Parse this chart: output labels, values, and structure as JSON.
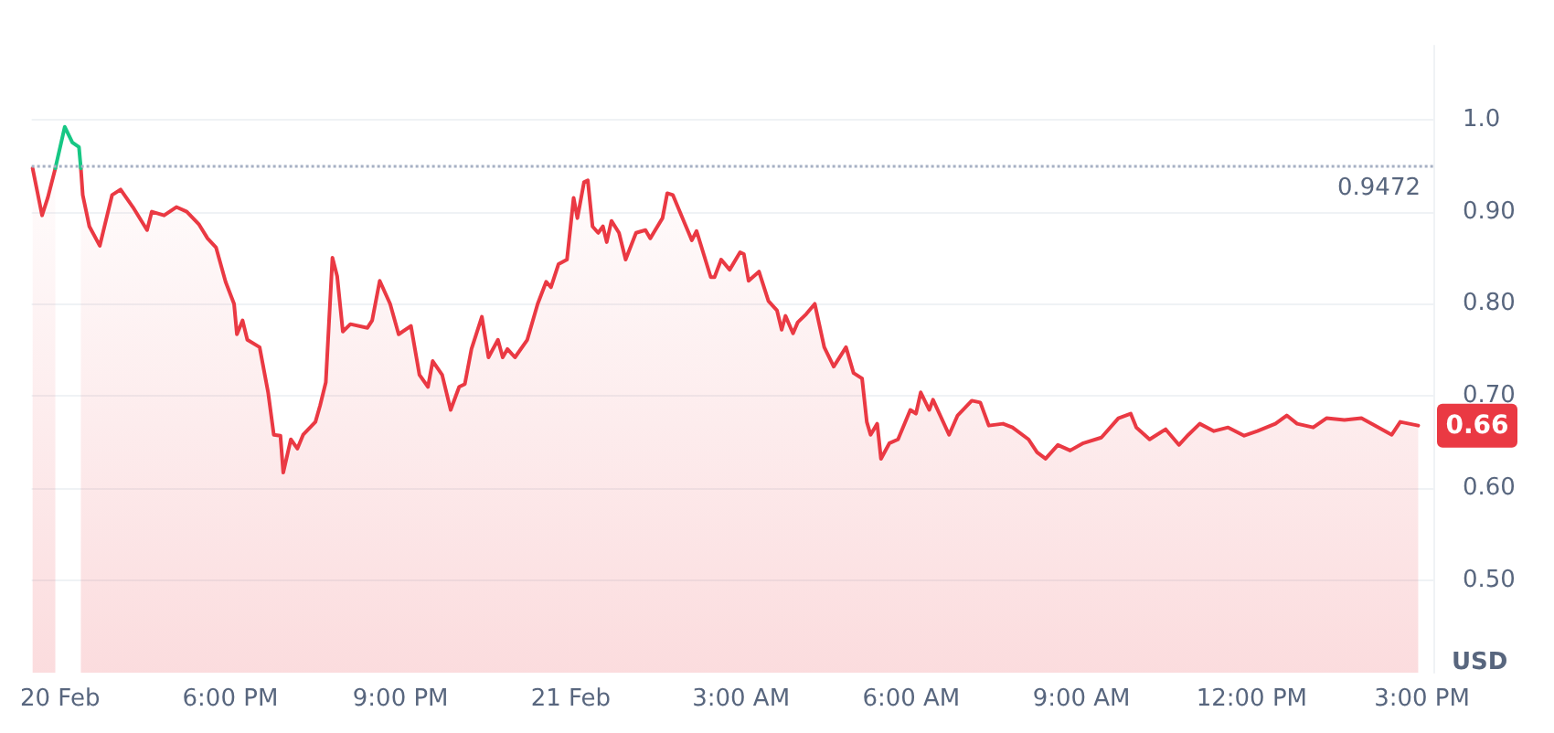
{
  "chart_data": {
    "type": "area",
    "series": [
      {
        "color": "#ea3943",
        "x": [
          "--02-20T14:31",
          "--02-20T14:41",
          "--02-20T14:47",
          "--02-20T14:55",
          "--02-20T15:05",
          "--02-20T15:22",
          "--02-20T15:24",
          "--02-20T15:31",
          "--02-20T15:42",
          "--02-20T15:55",
          "--02-20T16:04",
          "--02-20T16:17",
          "--02-20T16:32",
          "--02-20T16:37",
          "--02-20T16:50",
          "--02-20T17:03",
          "--02-20T17:14",
          "--02-20T17:27",
          "--02-20T17:36",
          "--02-20T17:45",
          "--02-20T17:55",
          "--02-20T18:04",
          "--02-20T18:07",
          "--02-20T18:13",
          "--02-20T18:18",
          "--02-20T18:31",
          "--02-20T18:40",
          "--02-20T18:46",
          "--02-20T18:53",
          "--02-20T18:56",
          "--02-20T19:04",
          "--02-20T19:11",
          "--02-20T19:17",
          "--02-20T19:30",
          "--02-20T19:35",
          "--02-20T19:41",
          "--02-20T19:48",
          "--02-20T19:53",
          "--02-20T19:59",
          "--02-20T20:07",
          "--02-20T20:25",
          "--02-20T20:30",
          "--02-20T20:38",
          "--02-20T20:49",
          "--02-20T20:58",
          "--02-20T21:11",
          "--02-20T21:20",
          "--02-20T21:29",
          "--02-20T21:34",
          "--02-20T21:44",
          "--02-20T21:53",
          "--02-20T22:02",
          "--02-20T22:08",
          "--02-20T22:15",
          "--02-20T22:26",
          "--02-20T22:33",
          "--02-20T22:43",
          "--02-20T22:48",
          "--02-20T22:53",
          "--02-20T23:01",
          "--02-20T23:14",
          "--02-20T23:25",
          "--02-20T23:34",
          "--02-20T23:39",
          "--02-20T23:47",
          "--02-20T23:56",
          "--02-21T00:03",
          "--02-21T00:07",
          "--02-21T00:14",
          "--02-21T00:18",
          "--02-21T00:23",
          "--02-21T00:29",
          "--02-21T00:34",
          "--02-21T00:38",
          "--02-21T00:43",
          "--02-21T00:51",
          "--02-21T00:58",
          "--02-21T01:09",
          "--02-21T01:19",
          "--02-21T01:24",
          "--02-21T01:37",
          "--02-21T01:42",
          "--02-21T01:48",
          "--02-21T02:01",
          "--02-21T02:08",
          "--02-21T02:13",
          "--02-21T02:28",
          "--02-21T02:32",
          "--02-21T02:39",
          "--02-21T02:48",
          "--02-21T02:59",
          "--02-21T03:03",
          "--02-21T03:08",
          "--02-21T03:19",
          "--02-21T03:29",
          "--02-21T03:38",
          "--02-21T03:43",
          "--02-21T03:47",
          "--02-21T03:55",
          "--02-21T04:00",
          "--02-21T04:09",
          "--02-21T04:18",
          "--02-21T04:28",
          "--02-21T04:38",
          "--02-21T04:51",
          "--02-21T04:59",
          "--02-21T05:08",
          "--02-21T05:13",
          "--02-21T05:17",
          "--02-21T05:24",
          "--02-21T05:28",
          "--02-21T05:37",
          "--02-21T05:46",
          "--02-21T05:59",
          "--02-21T06:05",
          "--02-21T06:10",
          "--02-21T06:19",
          "--02-21T06:23",
          "--02-21T06:40",
          "--02-21T06:49",
          "--02-21T07:04",
          "--02-21T07:13",
          "--02-21T07:22",
          "--02-21T07:37",
          "--02-21T07:47",
          "--02-21T08:04",
          "--02-21T08:13",
          "--02-21T08:22",
          "--02-21T08:35",
          "--02-21T08:48",
          "--02-21T09:02",
          "--02-21T09:21",
          "--02-21T09:39",
          "--02-21T09:52",
          "--02-21T09:58",
          "--02-21T10:12",
          "--02-21T10:29",
          "--02-21T10:43",
          "--02-21T10:53",
          "--02-21T11:05",
          "--02-21T11:20",
          "--02-21T11:35",
          "--02-21T11:52",
          "--02-21T12:06",
          "--02-21T12:25",
          "--02-21T12:37",
          "--02-21T12:48",
          "--02-21T13:05",
          "--02-21T13:19",
          "--02-21T13:38",
          "--02-21T13:56",
          "--02-21T14:14",
          "--02-21T14:28",
          "--02-21T14:37",
          "--02-21T14:56"
        ],
        "values": [
          0.947,
          0.896,
          0.915,
          0.947,
          null,
          0.947,
          0.918,
          0.884,
          0.863,
          0.918,
          0.924,
          0.905,
          0.88,
          0.9,
          0.896,
          0.905,
          0.9,
          0.886,
          0.871,
          0.861,
          0.824,
          0.8,
          0.767,
          0.782,
          0.761,
          0.753,
          0.704,
          0.658,
          0.657,
          0.617,
          0.653,
          0.643,
          0.658,
          0.672,
          0.69,
          0.715,
          0.85,
          0.83,
          0.77,
          0.778,
          0.774,
          0.782,
          0.825,
          0.8,
          0.767,
          0.776,
          0.723,
          0.71,
          0.738,
          0.723,
          0.685,
          0.71,
          0.713,
          0.751,
          0.786,
          0.742,
          0.761,
          0.742,
          0.751,
          0.742,
          0.761,
          0.8,
          0.824,
          0.818,
          0.843,
          0.848,
          0.915,
          0.893,
          0.932,
          0.934,
          0.884,
          0.877,
          0.884,
          0.867,
          0.89,
          0.877,
          0.848,
          0.877,
          0.88,
          0.871,
          0.893,
          0.92,
          0.918,
          0.886,
          0.869,
          0.879,
          0.829,
          0.829,
          0.848,
          0.837,
          0.856,
          0.854,
          0.825,
          0.835,
          0.803,
          0.793,
          0.772,
          0.787,
          0.768,
          0.78,
          0.789,
          0.8,
          0.753,
          0.732,
          0.753,
          0.725,
          0.719,
          0.672,
          0.658,
          0.67,
          0.632,
          0.649,
          0.653,
          0.685,
          0.681,
          0.704,
          0.685,
          0.696,
          0.658,
          0.679,
          0.695,
          0.693,
          0.668,
          0.67,
          0.666,
          0.653,
          0.639,
          0.632,
          0.647,
          0.641,
          0.649,
          0.655,
          0.676,
          0.681,
          0.666,
          0.653,
          0.664,
          0.647,
          0.658,
          0.67,
          0.662,
          0.666,
          0.657,
          0.662,
          0.67,
          0.679,
          0.67,
          0.666,
          0.676,
          0.674,
          0.676,
          0.666,
          0.658,
          0.672,
          0.668
        ]
      },
      {
        "type": "line",
        "color": "#16c784",
        "x": [
          "--02-20T14:55",
          "--02-20T15:05",
          "--02-20T15:13",
          "--02-20T15:20",
          "--02-20T15:22"
        ],
        "values": [
          0.947,
          0.992,
          0.975,
          0.97,
          0.947
        ]
      }
    ],
    "xlim": [
      "--02-20T14:30",
      "--02-21T15:12"
    ],
    "xticks": [
      {
        "value": "--02-20T15:00",
        "label": "20 Feb"
      },
      {
        "value": "--02-20T18:00",
        "label": "6:00 PM"
      },
      {
        "value": "--02-20T21:00",
        "label": "9:00 PM"
      },
      {
        "value": "--02-21T00:00",
        "label": "21 Feb"
      },
      {
        "value": "--02-21T03:00",
        "label": "3:00 AM"
      },
      {
        "value": "--02-21T06:00",
        "label": "6:00 AM"
      },
      {
        "value": "--02-21T09:00",
        "label": "9:00 AM"
      },
      {
        "value": "--02-21T12:00",
        "label": "12:00 PM"
      },
      {
        "value": "--02-21T15:00",
        "label": "3:00 PM"
      }
    ],
    "ylim": [
      0.4,
      1.08
    ],
    "yticks": [
      {
        "value": 0.5,
        "label": "0.50"
      },
      {
        "value": 0.6,
        "label": "0.60"
      },
      {
        "value": 0.7,
        "label": "0.70"
      },
      {
        "value": 0.8,
        "label": "0.80"
      },
      {
        "value": 0.9,
        "label": "0.90"
      },
      {
        "value": 1.0,
        "label": "1.0"
      }
    ],
    "ylabel": "USD",
    "ref_lines": [
      {
        "axis": "y",
        "value": 0.9472,
        "label": "0.9472",
        "line_style": "dotted",
        "color": "#a6b0c3"
      }
    ],
    "annotations": [
      "0.66"
    ],
    "grid": "y",
    "marker": "none",
    "line_style": "solid"
  }
}
